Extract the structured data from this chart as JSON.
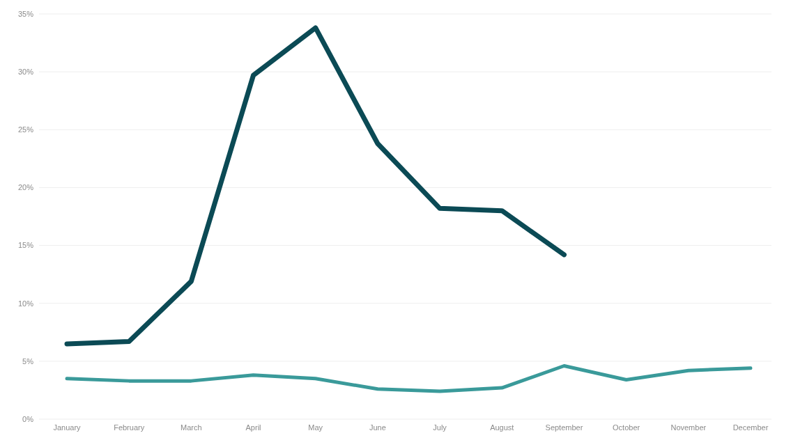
{
  "chart_data": {
    "type": "line",
    "categories": [
      "January",
      "February",
      "March",
      "April",
      "May",
      "June",
      "July",
      "August",
      "September",
      "October",
      "November",
      "December"
    ],
    "series": [
      {
        "color": "#0b4a55",
        "values": [
          6.5,
          6.7,
          11.9,
          29.7,
          33.8,
          23.8,
          18.2,
          18.0,
          14.2,
          null,
          null,
          null
        ]
      },
      {
        "color": "#3a9a9a",
        "values": [
          3.5,
          3.3,
          3.3,
          3.8,
          3.5,
          2.6,
          2.4,
          2.7,
          4.6,
          3.4,
          4.2,
          4.4
        ]
      }
    ],
    "ylim": [
      0,
      35
    ],
    "yticks": [
      {
        "value": 0,
        "label": "0%"
      },
      {
        "value": 5,
        "label": "5%"
      },
      {
        "value": 10,
        "label": "10%"
      },
      {
        "value": 15,
        "label": "15%"
      },
      {
        "value": 20,
        "label": "20%"
      },
      {
        "value": 25,
        "label": "25%"
      },
      {
        "value": 30,
        "label": "30%"
      },
      {
        "value": 35,
        "label": "35%"
      }
    ],
    "grid": "y",
    "legend": false,
    "marker": "none",
    "line_style": "solid"
  }
}
